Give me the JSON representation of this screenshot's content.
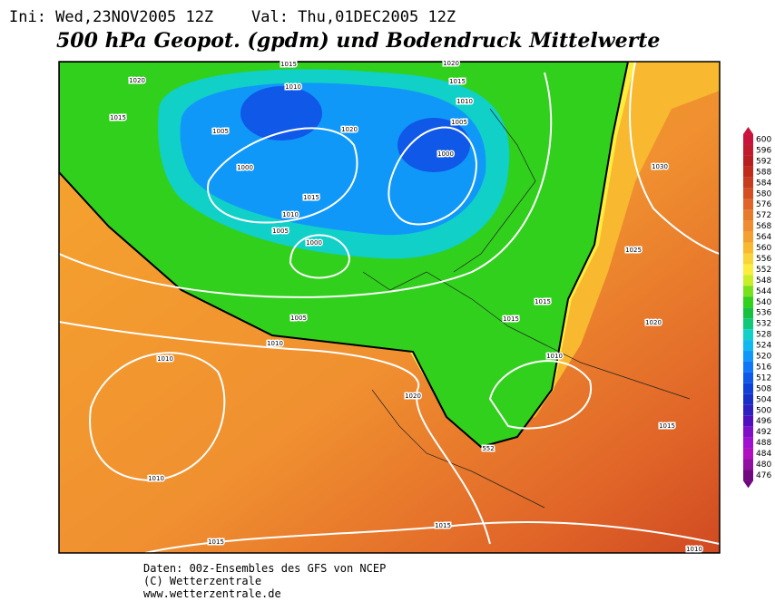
{
  "header": {
    "init": "Ini: Wed,23NOV2005 12Z",
    "valid": "Val: Thu,01DEC2005 12Z",
    "title": "500 hPa Geopot. (gpdm) und Bodendruck Mittelwerte"
  },
  "isobar_labels": [
    "1015",
    "1020",
    "1020",
    "1015",
    "1010",
    "1010",
    "1015",
    "1005",
    "1005",
    "1020",
    "1000",
    "1000",
    "1030",
    "1015",
    "1010",
    "1005",
    "1000",
    "1025",
    "1015",
    "1005",
    "1015",
    "1020",
    "1010",
    "1010",
    "1010",
    "1020",
    "1015",
    "552",
    "1010",
    "1015",
    "1015",
    "1010"
  ],
  "colorbar": {
    "levels": [
      600,
      596,
      592,
      588,
      584,
      580,
      576,
      572,
      568,
      564,
      560,
      556,
      552,
      548,
      544,
      540,
      536,
      532,
      528,
      524,
      520,
      516,
      512,
      508,
      504,
      500,
      496,
      492,
      488,
      484,
      480,
      476
    ],
    "colors": [
      "#c8143c",
      "#c01b2c",
      "#b82020",
      "#c02c1c",
      "#c83c1e",
      "#d44e22",
      "#e06428",
      "#e87a2c",
      "#f08c30",
      "#f4a030",
      "#f8b830",
      "#fad23a",
      "#fcec3c",
      "#c8ee28",
      "#78e01c",
      "#30d01c",
      "#18c040",
      "#10c878",
      "#10d0c8",
      "#10b8f0",
      "#1098f8",
      "#1078f8",
      "#1058e8",
      "#1040d8",
      "#1830c8",
      "#3020c0",
      "#5010c0",
      "#8010c8",
      "#a010d0",
      "#b010c0",
      "#9010a0",
      "#700880"
    ]
  },
  "footer": {
    "source": "Daten: 00z-Ensembles des GFS von NCEP",
    "copyright": "(C) Wetterzentrale",
    "url": "www.wetterzentrale.de"
  }
}
